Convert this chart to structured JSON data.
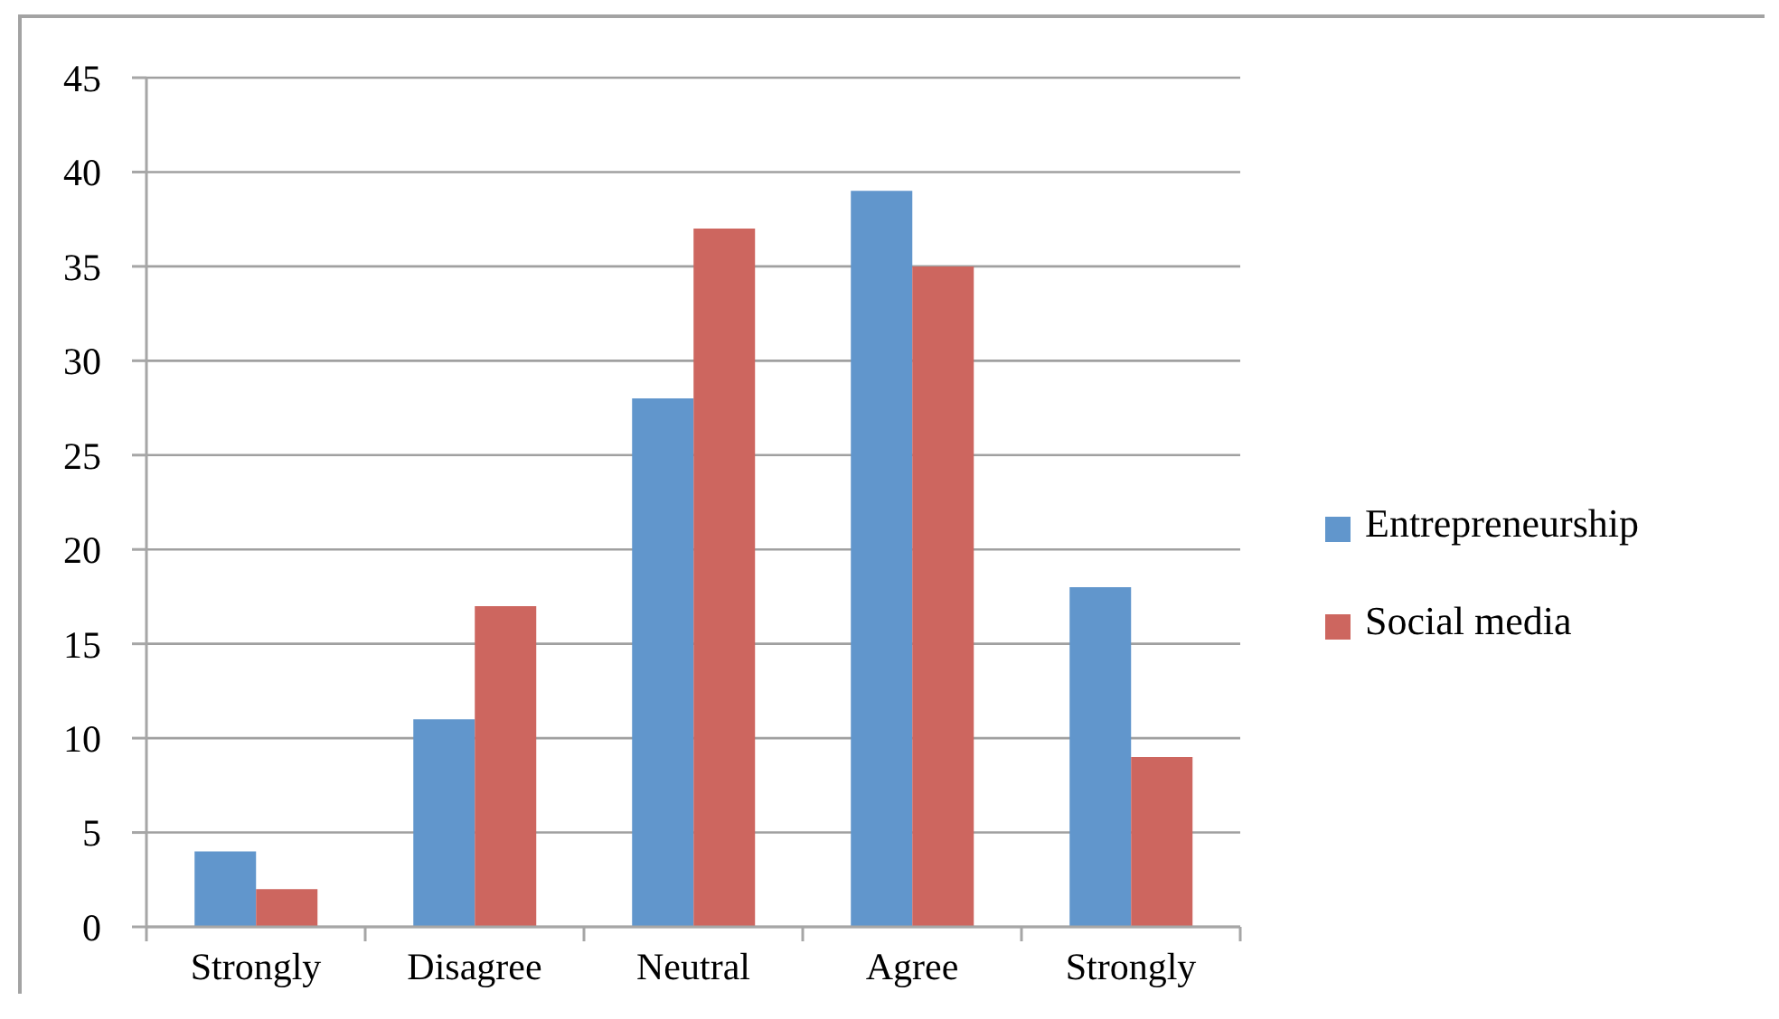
{
  "chart_data": {
    "type": "bar",
    "categories": [
      "Strongly",
      "Disagree",
      "Neutral",
      "Agree",
      "Strongly"
    ],
    "series": [
      {
        "name": "Entrepreneurship",
        "color": "#6196cc",
        "values": [
          4,
          11,
          28,
          39,
          18
        ]
      },
      {
        "name": "Social media",
        "color": "#cd665f",
        "values": [
          2,
          17,
          37,
          35,
          9
        ]
      }
    ],
    "ylim": [
      0,
      45
    ],
    "yticks": [
      0,
      5,
      10,
      15,
      20,
      25,
      30,
      35,
      40,
      45
    ],
    "grid": "y",
    "legend": "right"
  }
}
